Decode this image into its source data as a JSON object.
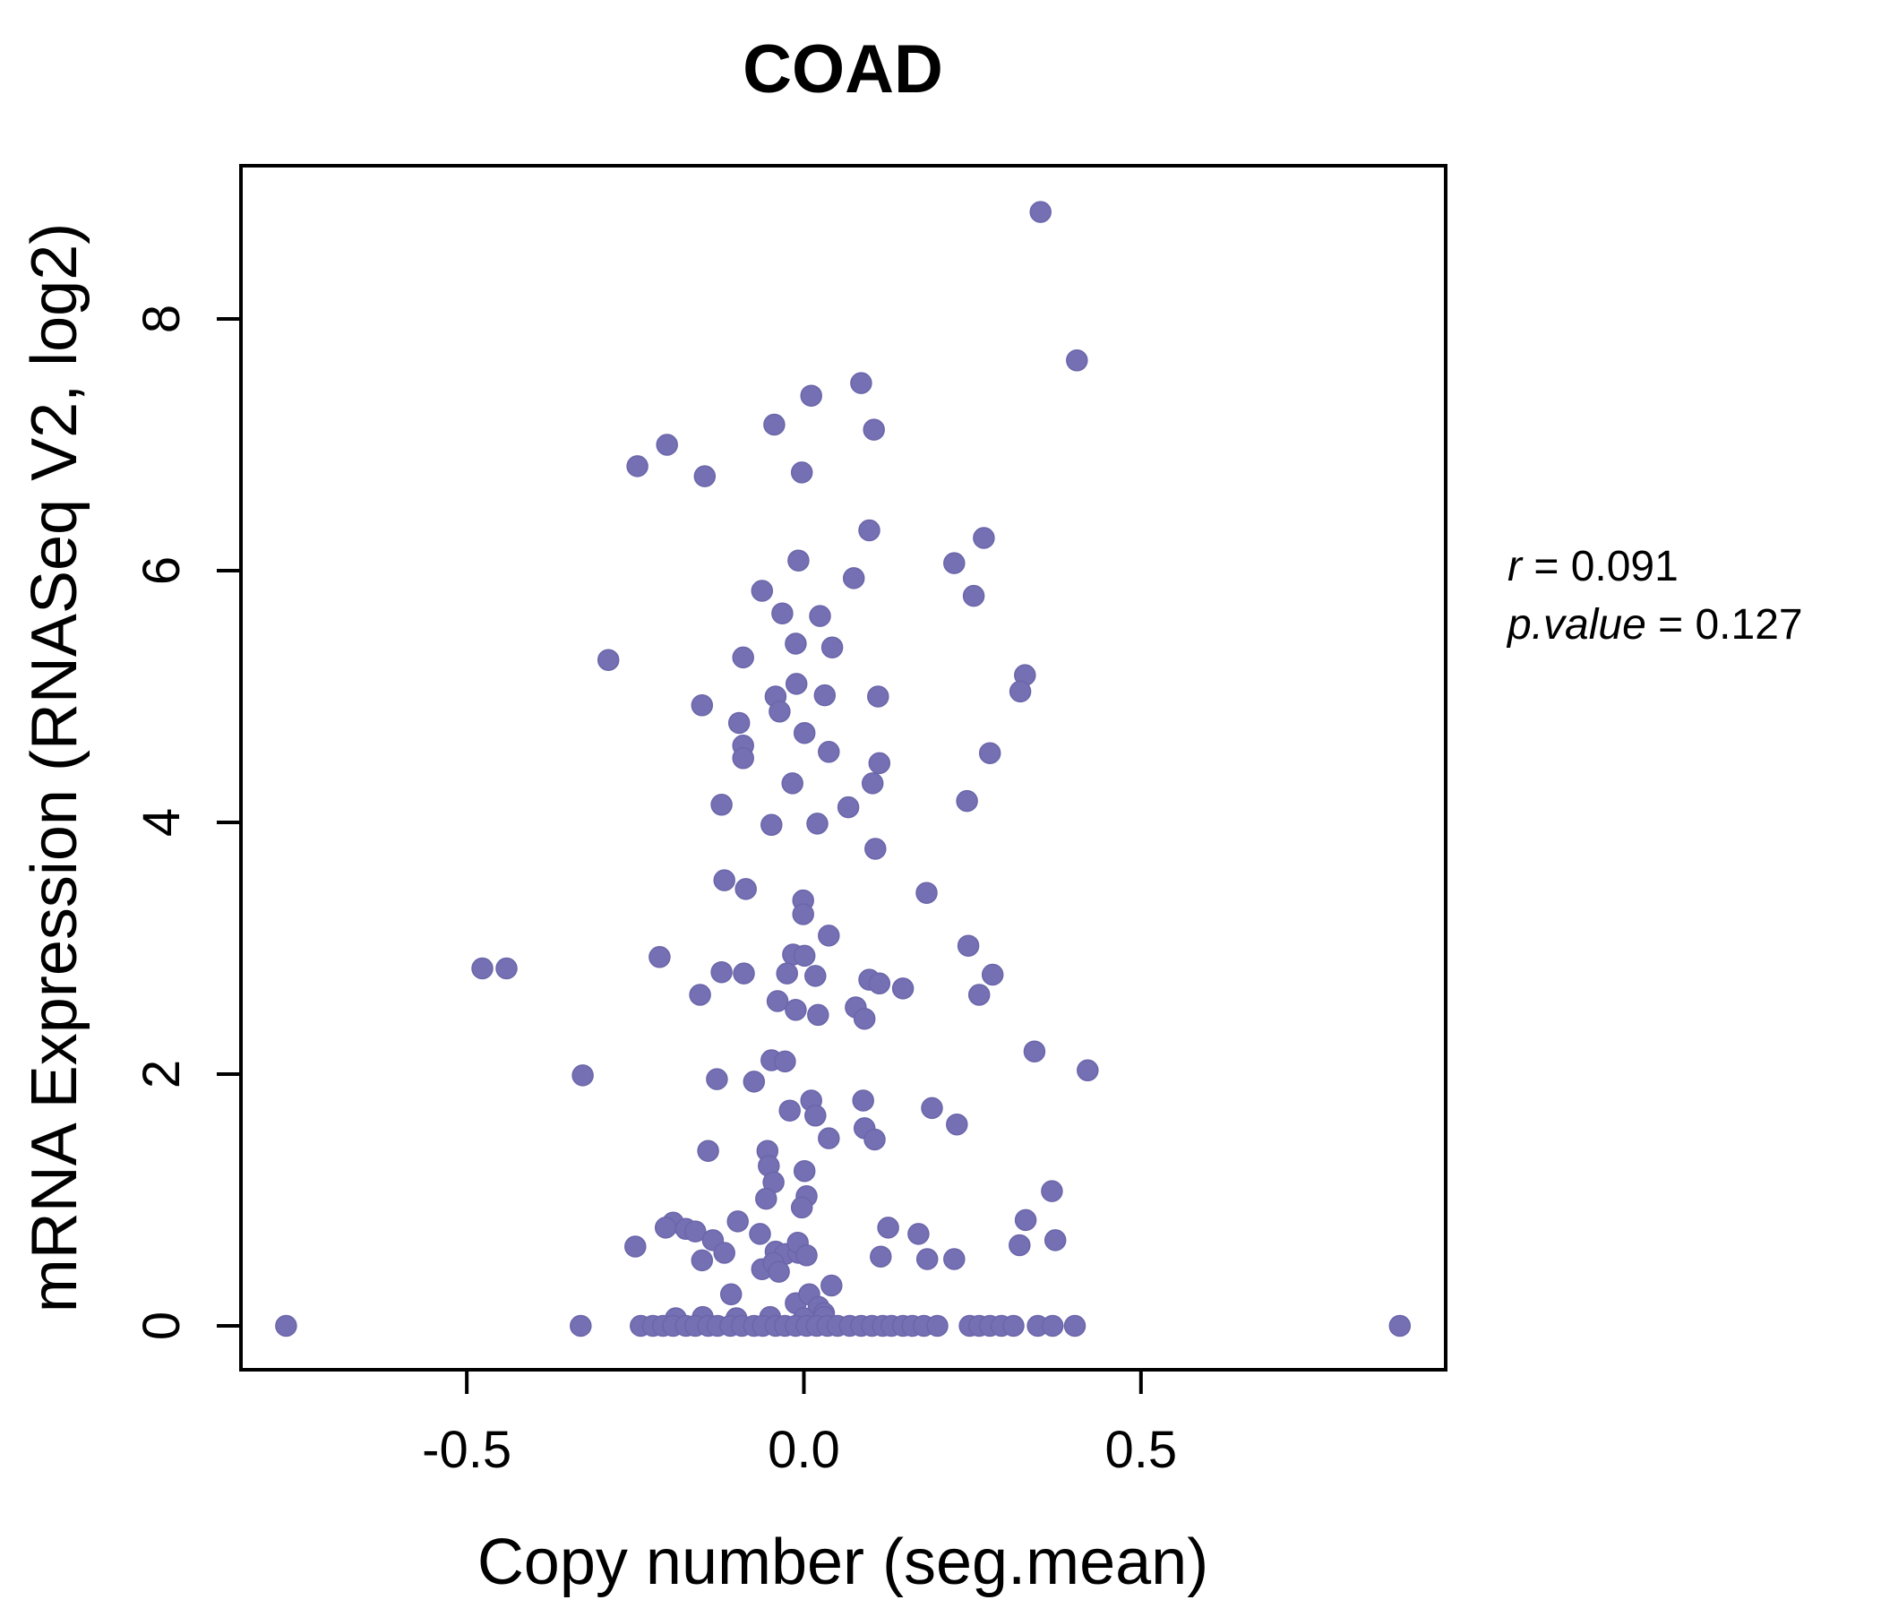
{
  "title": "COAD",
  "colors": {
    "title": "#8783c5",
    "point_fill": "#7570b3",
    "point_edge": "#6b66aa",
    "axis": "#000000"
  },
  "axes": {
    "x_label": "Copy number (seg.mean)",
    "y_label": "mRNA Expression (RNASeq V2, log2)",
    "x_ticks": [
      {
        "value": -0.5,
        "label": "-0.5"
      },
      {
        "value": 0.0,
        "label": "0.0"
      },
      {
        "value": 0.5,
        "label": "0.5"
      }
    ],
    "y_ticks": [
      {
        "value": 0,
        "label": "0"
      },
      {
        "value": 2,
        "label": "2"
      },
      {
        "value": 4,
        "label": "4"
      },
      {
        "value": 6,
        "label": "6"
      },
      {
        "value": 8,
        "label": "8"
      }
    ]
  },
  "annotation": {
    "line1": {
      "var": "r",
      "rest": " = 0.091"
    },
    "line2": {
      "var": "p.value",
      "rest": " = 0.127"
    }
  },
  "chart_data": {
    "type": "scatter",
    "title": "COAD",
    "xlabel": "Copy number (seg.mean)",
    "ylabel": "mRNA Expression (RNASeq V2, log2)",
    "xlim": [
      -0.835,
      0.952
    ],
    "ylim": [
      -0.349,
      9.217
    ],
    "x_ticks": [
      -0.5,
      0.0,
      0.5
    ],
    "y_ticks": [
      0,
      2,
      4,
      6,
      8
    ],
    "grid": false,
    "legend": "none",
    "r": 0.091,
    "p_value": 0.127,
    "points": [
      [
        0.351,
        8.85
      ],
      [
        0.405,
        7.67
      ],
      [
        0.085,
        7.49
      ],
      [
        0.011,
        7.39
      ],
      [
        -0.044,
        7.16
      ],
      [
        0.104,
        7.12
      ],
      [
        -0.203,
        7.0
      ],
      [
        -0.247,
        6.83
      ],
      [
        -0.147,
        6.75
      ],
      [
        -0.003,
        6.78
      ],
      [
        0.097,
        6.32
      ],
      [
        0.267,
        6.26
      ],
      [
        -0.008,
        6.08
      ],
      [
        0.223,
        6.06
      ],
      [
        0.074,
        5.94
      ],
      [
        -0.062,
        5.84
      ],
      [
        0.252,
        5.8
      ],
      [
        -0.032,
        5.66
      ],
      [
        0.024,
        5.64
      ],
      [
        -0.012,
        5.42
      ],
      [
        0.042,
        5.39
      ],
      [
        -0.09,
        5.31
      ],
      [
        -0.29,
        5.29
      ],
      [
        0.328,
        5.17
      ],
      [
        0.321,
        5.04
      ],
      [
        -0.011,
        5.1
      ],
      [
        -0.042,
        5.0
      ],
      [
        0.031,
        5.01
      ],
      [
        0.11,
        5.0
      ],
      [
        -0.151,
        4.93
      ],
      [
        -0.036,
        4.88
      ],
      [
        -0.096,
        4.79
      ],
      [
        0.001,
        4.71
      ],
      [
        -0.09,
        4.61
      ],
      [
        0.037,
        4.56
      ],
      [
        -0.09,
        4.51
      ],
      [
        0.112,
        4.47
      ],
      [
        0.276,
        4.55
      ],
      [
        -0.017,
        4.31
      ],
      [
        0.102,
        4.31
      ],
      [
        -0.122,
        4.14
      ],
      [
        0.066,
        4.12
      ],
      [
        0.242,
        4.17
      ],
      [
        -0.048,
        3.98
      ],
      [
        0.02,
        3.99
      ],
      [
        0.106,
        3.79
      ],
      [
        -0.118,
        3.54
      ],
      [
        -0.086,
        3.47
      ],
      [
        0.182,
        3.44
      ],
      [
        -0.001,
        3.38
      ],
      [
        -0.001,
        3.27
      ],
      [
        0.037,
        3.1
      ],
      [
        -0.214,
        2.93
      ],
      [
        -0.016,
        2.95
      ],
      [
        0.001,
        2.94
      ],
      [
        0.244,
        3.02
      ],
      [
        -0.477,
        2.84
      ],
      [
        -0.441,
        2.84
      ],
      [
        -0.122,
        2.81
      ],
      [
        -0.089,
        2.8
      ],
      [
        -0.025,
        2.8
      ],
      [
        0.017,
        2.78
      ],
      [
        0.097,
        2.75
      ],
      [
        0.112,
        2.72
      ],
      [
        0.147,
        2.68
      ],
      [
        0.28,
        2.79
      ],
      [
        -0.154,
        2.63
      ],
      [
        0.26,
        2.63
      ],
      [
        -0.039,
        2.58
      ],
      [
        -0.012,
        2.51
      ],
      [
        0.021,
        2.47
      ],
      [
        0.077,
        2.53
      ],
      [
        0.09,
        2.44
      ],
      [
        0.342,
        2.18
      ],
      [
        -0.328,
        1.99
      ],
      [
        0.421,
        2.03
      ],
      [
        -0.129,
        1.96
      ],
      [
        -0.074,
        1.94
      ],
      [
        -0.048,
        2.11
      ],
      [
        -0.028,
        2.1
      ],
      [
        -0.021,
        1.71
      ],
      [
        0.011,
        1.79
      ],
      [
        0.017,
        1.67
      ],
      [
        0.037,
        1.49
      ],
      [
        0.088,
        1.79
      ],
      [
        0.09,
        1.57
      ],
      [
        0.105,
        1.48
      ],
      [
        0.19,
        1.73
      ],
      [
        0.227,
        1.6
      ],
      [
        -0.142,
        1.39
      ],
      [
        -0.054,
        1.39
      ],
      [
        -0.052,
        1.27
      ],
      [
        -0.045,
        1.14
      ],
      [
        -0.056,
        1.01
      ],
      [
        0.001,
        1.23
      ],
      [
        0.004,
        1.03
      ],
      [
        -0.003,
        0.94
      ],
      [
        0.368,
        1.07
      ],
      [
        -0.194,
        0.82
      ],
      [
        -0.205,
        0.78
      ],
      [
        -0.175,
        0.77
      ],
      [
        -0.161,
        0.75
      ],
      [
        -0.25,
        0.63
      ],
      [
        -0.098,
        0.83
      ],
      [
        -0.135,
        0.68
      ],
      [
        -0.118,
        0.58
      ],
      [
        -0.151,
        0.52
      ],
      [
        -0.065,
        0.73
      ],
      [
        -0.062,
        0.45
      ],
      [
        -0.042,
        0.59
      ],
      [
        -0.028,
        0.57
      ],
      [
        -0.008,
        0.58
      ],
      [
        -0.045,
        0.5
      ],
      [
        -0.009,
        0.66
      ],
      [
        0.004,
        0.56
      ],
      [
        0.125,
        0.78
      ],
      [
        0.17,
        0.73
      ],
      [
        0.114,
        0.55
      ],
      [
        0.183,
        0.53
      ],
      [
        0.223,
        0.53
      ],
      [
        0.329,
        0.84
      ],
      [
        0.32,
        0.64
      ],
      [
        0.373,
        0.68
      ],
      [
        0.041,
        0.32
      ],
      [
        -0.108,
        0.25
      ],
      [
        -0.037,
        0.43
      ],
      [
        -0.012,
        0.18
      ],
      [
        0.008,
        0.25
      ],
      [
        0.022,
        0.15
      ],
      [
        0.03,
        0.1
      ],
      [
        -0.19,
        0.06
      ],
      [
        -0.15,
        0.07
      ],
      [
        -0.1,
        0.06
      ],
      [
        -0.05,
        0.07
      ],
      [
        0.0,
        0.06
      ],
      [
        0.03,
        0.07
      ],
      [
        -0.768,
        0
      ],
      [
        -0.331,
        0
      ],
      [
        -0.242,
        0
      ],
      [
        -0.224,
        0
      ],
      [
        -0.209,
        0
      ],
      [
        -0.194,
        0
      ],
      [
        -0.175,
        0
      ],
      [
        -0.161,
        0
      ],
      [
        -0.142,
        0
      ],
      [
        -0.128,
        0
      ],
      [
        -0.109,
        0
      ],
      [
        -0.092,
        0
      ],
      [
        -0.074,
        0
      ],
      [
        -0.061,
        0
      ],
      [
        -0.042,
        0
      ],
      [
        -0.028,
        0
      ],
      [
        -0.012,
        0
      ],
      [
        0.004,
        0
      ],
      [
        0.019,
        0
      ],
      [
        0.035,
        0
      ],
      [
        0.05,
        0
      ],
      [
        0.068,
        0
      ],
      [
        0.085,
        0
      ],
      [
        0.101,
        0
      ],
      [
        0.117,
        0
      ],
      [
        0.13,
        0
      ],
      [
        0.147,
        0
      ],
      [
        0.161,
        0
      ],
      [
        0.178,
        0
      ],
      [
        0.198,
        0
      ],
      [
        0.246,
        0
      ],
      [
        0.26,
        0
      ],
      [
        0.276,
        0
      ],
      [
        0.293,
        0
      ],
      [
        0.311,
        0
      ],
      [
        0.347,
        0
      ],
      [
        0.369,
        0
      ],
      [
        0.402,
        0
      ],
      [
        0.884,
        0
      ]
    ]
  }
}
